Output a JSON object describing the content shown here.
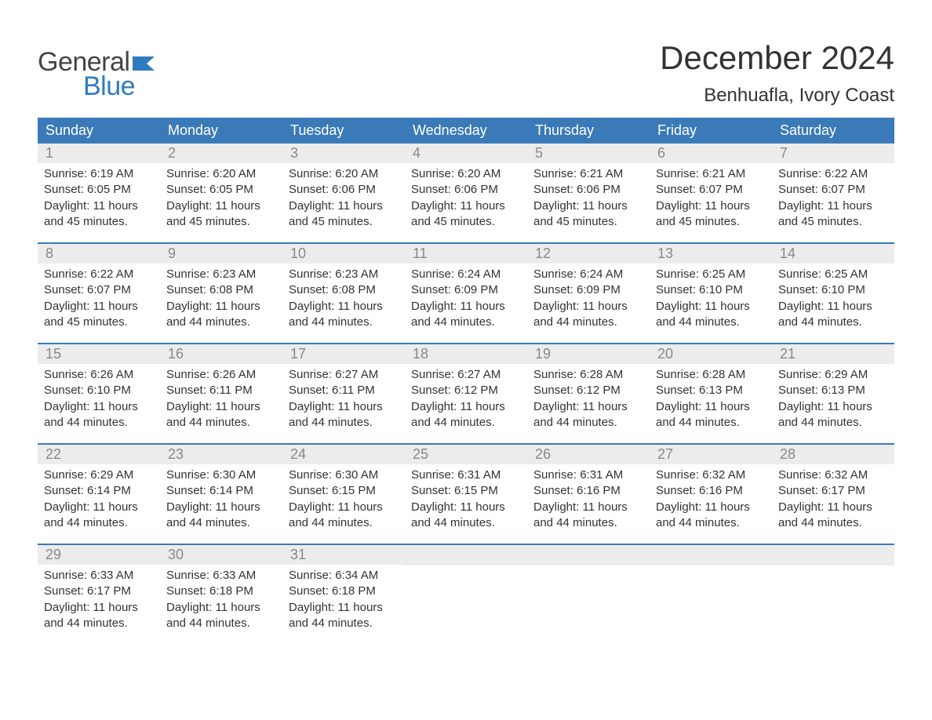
{
  "logo": {
    "line1": "General",
    "line2": "Blue",
    "flag_color": "#2f7bbf",
    "text_color_general": "#444444",
    "text_color_blue": "#2f7bbf"
  },
  "title": {
    "month": "December 2024",
    "location": "Benhuafla, Ivory Coast"
  },
  "colors": {
    "header_bg": "#3a7ab8",
    "header_text": "#ffffff",
    "week_border": "#3a7ab8",
    "daynum_bg": "#ececec",
    "daynum_text": "#888888",
    "body_text": "#333333",
    "page_bg": "#ffffff"
  },
  "day_headers": [
    "Sunday",
    "Monday",
    "Tuesday",
    "Wednesday",
    "Thursday",
    "Friday",
    "Saturday"
  ],
  "weeks": [
    [
      {
        "num": "1",
        "sunrise": "Sunrise: 6:19 AM",
        "sunset": "Sunset: 6:05 PM",
        "daylight1": "Daylight: 11 hours",
        "daylight2": "and 45 minutes."
      },
      {
        "num": "2",
        "sunrise": "Sunrise: 6:20 AM",
        "sunset": "Sunset: 6:05 PM",
        "daylight1": "Daylight: 11 hours",
        "daylight2": "and 45 minutes."
      },
      {
        "num": "3",
        "sunrise": "Sunrise: 6:20 AM",
        "sunset": "Sunset: 6:06 PM",
        "daylight1": "Daylight: 11 hours",
        "daylight2": "and 45 minutes."
      },
      {
        "num": "4",
        "sunrise": "Sunrise: 6:20 AM",
        "sunset": "Sunset: 6:06 PM",
        "daylight1": "Daylight: 11 hours",
        "daylight2": "and 45 minutes."
      },
      {
        "num": "5",
        "sunrise": "Sunrise: 6:21 AM",
        "sunset": "Sunset: 6:06 PM",
        "daylight1": "Daylight: 11 hours",
        "daylight2": "and 45 minutes."
      },
      {
        "num": "6",
        "sunrise": "Sunrise: 6:21 AM",
        "sunset": "Sunset: 6:07 PM",
        "daylight1": "Daylight: 11 hours",
        "daylight2": "and 45 minutes."
      },
      {
        "num": "7",
        "sunrise": "Sunrise: 6:22 AM",
        "sunset": "Sunset: 6:07 PM",
        "daylight1": "Daylight: 11 hours",
        "daylight2": "and 45 minutes."
      }
    ],
    [
      {
        "num": "8",
        "sunrise": "Sunrise: 6:22 AM",
        "sunset": "Sunset: 6:07 PM",
        "daylight1": "Daylight: 11 hours",
        "daylight2": "and 45 minutes."
      },
      {
        "num": "9",
        "sunrise": "Sunrise: 6:23 AM",
        "sunset": "Sunset: 6:08 PM",
        "daylight1": "Daylight: 11 hours",
        "daylight2": "and 44 minutes."
      },
      {
        "num": "10",
        "sunrise": "Sunrise: 6:23 AM",
        "sunset": "Sunset: 6:08 PM",
        "daylight1": "Daylight: 11 hours",
        "daylight2": "and 44 minutes."
      },
      {
        "num": "11",
        "sunrise": "Sunrise: 6:24 AM",
        "sunset": "Sunset: 6:09 PM",
        "daylight1": "Daylight: 11 hours",
        "daylight2": "and 44 minutes."
      },
      {
        "num": "12",
        "sunrise": "Sunrise: 6:24 AM",
        "sunset": "Sunset: 6:09 PM",
        "daylight1": "Daylight: 11 hours",
        "daylight2": "and 44 minutes."
      },
      {
        "num": "13",
        "sunrise": "Sunrise: 6:25 AM",
        "sunset": "Sunset: 6:10 PM",
        "daylight1": "Daylight: 11 hours",
        "daylight2": "and 44 minutes."
      },
      {
        "num": "14",
        "sunrise": "Sunrise: 6:25 AM",
        "sunset": "Sunset: 6:10 PM",
        "daylight1": "Daylight: 11 hours",
        "daylight2": "and 44 minutes."
      }
    ],
    [
      {
        "num": "15",
        "sunrise": "Sunrise: 6:26 AM",
        "sunset": "Sunset: 6:10 PM",
        "daylight1": "Daylight: 11 hours",
        "daylight2": "and 44 minutes."
      },
      {
        "num": "16",
        "sunrise": "Sunrise: 6:26 AM",
        "sunset": "Sunset: 6:11 PM",
        "daylight1": "Daylight: 11 hours",
        "daylight2": "and 44 minutes."
      },
      {
        "num": "17",
        "sunrise": "Sunrise: 6:27 AM",
        "sunset": "Sunset: 6:11 PM",
        "daylight1": "Daylight: 11 hours",
        "daylight2": "and 44 minutes."
      },
      {
        "num": "18",
        "sunrise": "Sunrise: 6:27 AM",
        "sunset": "Sunset: 6:12 PM",
        "daylight1": "Daylight: 11 hours",
        "daylight2": "and 44 minutes."
      },
      {
        "num": "19",
        "sunrise": "Sunrise: 6:28 AM",
        "sunset": "Sunset: 6:12 PM",
        "daylight1": "Daylight: 11 hours",
        "daylight2": "and 44 minutes."
      },
      {
        "num": "20",
        "sunrise": "Sunrise: 6:28 AM",
        "sunset": "Sunset: 6:13 PM",
        "daylight1": "Daylight: 11 hours",
        "daylight2": "and 44 minutes."
      },
      {
        "num": "21",
        "sunrise": "Sunrise: 6:29 AM",
        "sunset": "Sunset: 6:13 PM",
        "daylight1": "Daylight: 11 hours",
        "daylight2": "and 44 minutes."
      }
    ],
    [
      {
        "num": "22",
        "sunrise": "Sunrise: 6:29 AM",
        "sunset": "Sunset: 6:14 PM",
        "daylight1": "Daylight: 11 hours",
        "daylight2": "and 44 minutes."
      },
      {
        "num": "23",
        "sunrise": "Sunrise: 6:30 AM",
        "sunset": "Sunset: 6:14 PM",
        "daylight1": "Daylight: 11 hours",
        "daylight2": "and 44 minutes."
      },
      {
        "num": "24",
        "sunrise": "Sunrise: 6:30 AM",
        "sunset": "Sunset: 6:15 PM",
        "daylight1": "Daylight: 11 hours",
        "daylight2": "and 44 minutes."
      },
      {
        "num": "25",
        "sunrise": "Sunrise: 6:31 AM",
        "sunset": "Sunset: 6:15 PM",
        "daylight1": "Daylight: 11 hours",
        "daylight2": "and 44 minutes."
      },
      {
        "num": "26",
        "sunrise": "Sunrise: 6:31 AM",
        "sunset": "Sunset: 6:16 PM",
        "daylight1": "Daylight: 11 hours",
        "daylight2": "and 44 minutes."
      },
      {
        "num": "27",
        "sunrise": "Sunrise: 6:32 AM",
        "sunset": "Sunset: 6:16 PM",
        "daylight1": "Daylight: 11 hours",
        "daylight2": "and 44 minutes."
      },
      {
        "num": "28",
        "sunrise": "Sunrise: 6:32 AM",
        "sunset": "Sunset: 6:17 PM",
        "daylight1": "Daylight: 11 hours",
        "daylight2": "and 44 minutes."
      }
    ],
    [
      {
        "num": "29",
        "sunrise": "Sunrise: 6:33 AM",
        "sunset": "Sunset: 6:17 PM",
        "daylight1": "Daylight: 11 hours",
        "daylight2": "and 44 minutes."
      },
      {
        "num": "30",
        "sunrise": "Sunrise: 6:33 AM",
        "sunset": "Sunset: 6:18 PM",
        "daylight1": "Daylight: 11 hours",
        "daylight2": "and 44 minutes."
      },
      {
        "num": "31",
        "sunrise": "Sunrise: 6:34 AM",
        "sunset": "Sunset: 6:18 PM",
        "daylight1": "Daylight: 11 hours",
        "daylight2": "and 44 minutes."
      },
      {
        "empty": true
      },
      {
        "empty": true
      },
      {
        "empty": true
      },
      {
        "empty": true
      }
    ]
  ]
}
